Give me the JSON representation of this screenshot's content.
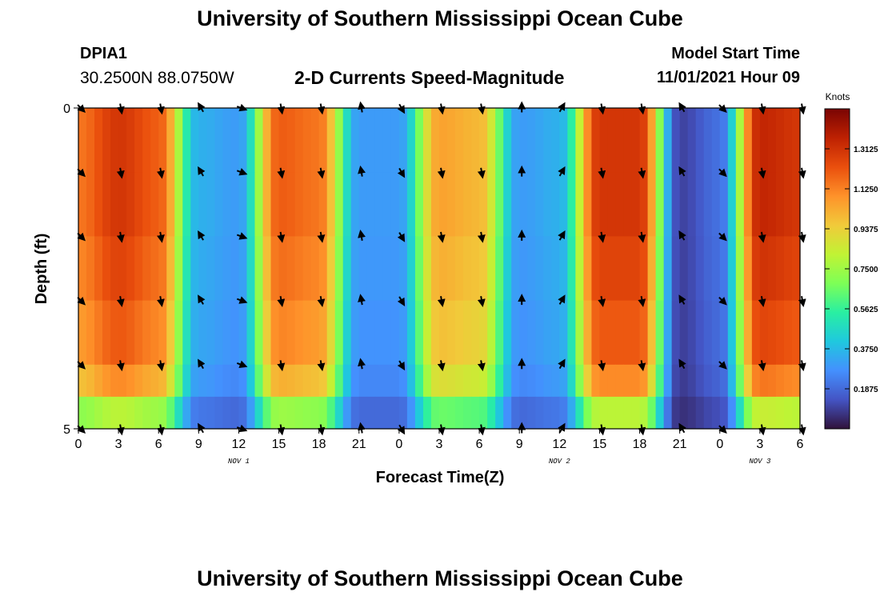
{
  "header": {
    "title": "University of Southern Mississippi Ocean Cube",
    "station_id": "DPIA1",
    "coordinates": "30.2500N  88.0750W",
    "chart_title": "2-D Currents Speed-Magnitude",
    "start_label": "Model Start Time",
    "start_value": "11/01/2021 Hour 09"
  },
  "footer": {
    "title": "University of Southern Mississippi Ocean Cube"
  },
  "chart_data": {
    "type": "heatmap",
    "title": "2-D Currents Speed-Magnitude",
    "xlabel": "Forecast Time(Z)",
    "ylabel": "Depth (ft)",
    "ylim": [
      0,
      5
    ],
    "y_ticks": [
      "0",
      "5"
    ],
    "x_ticks": [
      "0",
      "3",
      "6",
      "9",
      "12",
      "15",
      "18",
      "21",
      "0",
      "3",
      "6",
      "9",
      "12",
      "15",
      "18",
      "21",
      "0",
      "3",
      "6"
    ],
    "date_labels": [
      {
        "label": "NOV 1",
        "tick_index": 4
      },
      {
        "label": "NOV 2",
        "tick_index": 12
      },
      {
        "label": "NOV 3",
        "tick_index": 17
      }
    ],
    "colorbar": {
      "label": "Knots",
      "min": 0.0,
      "max": 1.5,
      "ticks": [
        "1.3125",
        "1.1250",
        "0.9375",
        "0.7500",
        "0.5625",
        "0.3750",
        "0.1875"
      ],
      "tick_values": [
        1.3125,
        1.125,
        0.9375,
        0.75,
        0.5625,
        0.375,
        0.1875
      ],
      "colors": [
        "#30123b",
        "#4454c4",
        "#4490fe",
        "#1fc8de",
        "#29efa2",
        "#7dff56",
        "#c1f334",
        "#f1ca3a",
        "#fe922a",
        "#ea4f0d",
        "#be2102",
        "#7a0403"
      ]
    },
    "time_hours": [
      0,
      3,
      6,
      9,
      12,
      15,
      18,
      21,
      24,
      27,
      30,
      33,
      36,
      39,
      42,
      45,
      48,
      51,
      54
    ],
    "speed_profile": [
      1.15,
      1.3,
      1.2,
      0.35,
      0.3,
      1.2,
      1.15,
      0.3,
      0.3,
      1.05,
      1.0,
      0.3,
      0.35,
      1.3,
      1.3,
      0.1,
      0.2,
      1.35,
      1.3
    ],
    "depth_layers": [
      {
        "depth_ft": 0.0,
        "factor": 1.0
      },
      {
        "depth_ft": 1.0,
        "factor": 1.0
      },
      {
        "depth_ft": 2.0,
        "factor": 0.97
      },
      {
        "depth_ft": 3.0,
        "factor": 0.93
      },
      {
        "depth_ft": 4.0,
        "factor": 0.85
      },
      {
        "depth_ft": 4.5,
        "factor": 0.62
      }
    ],
    "arrow_depths_ft": [
      0,
      1,
      2,
      3,
      4,
      5
    ],
    "arrow_times_h": [
      0,
      3,
      6,
      9,
      12,
      15,
      18,
      21,
      24,
      27,
      30,
      33,
      36,
      39,
      42,
      45,
      48,
      51,
      54
    ],
    "arrow_directions_deg": [
      135,
      170,
      170,
      330,
      110,
      170,
      170,
      350,
      150,
      170,
      170,
      0,
      30,
      170,
      170,
      330,
      135,
      170,
      170
    ]
  }
}
